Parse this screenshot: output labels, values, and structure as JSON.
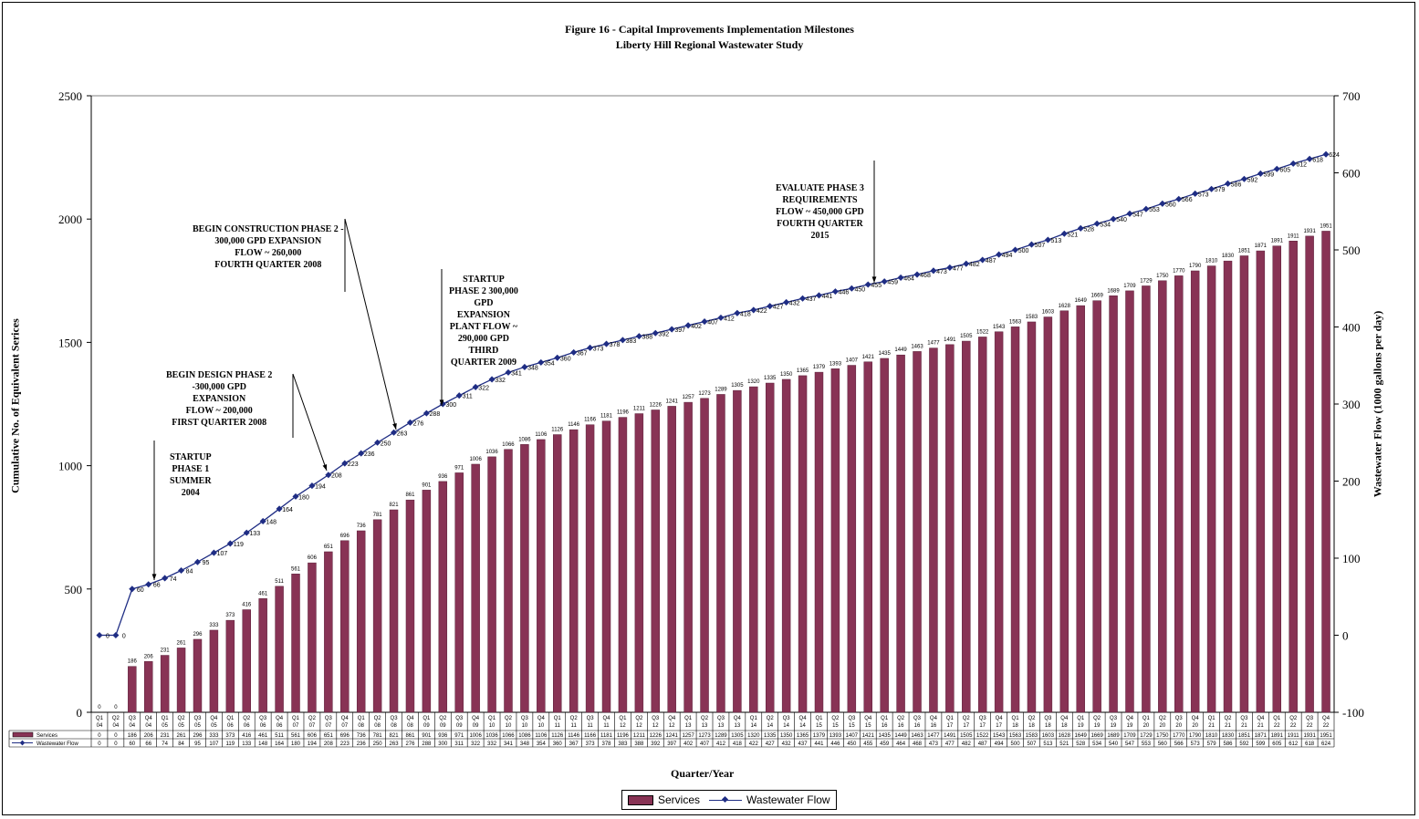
{
  "title": "Figure 16 - Capital Improvements Implementation Milestones",
  "subtitle": "Liberty Hill Regional Wastewater Study",
  "chart_data": {
    "type": "bar",
    "xlabel": "Quarter/Year",
    "ylabel_left": "Cumulative No. of Equivalent Serices",
    "ylabel_right": "Wastewater Flow (1000 gallons per day)",
    "ylim_left": [
      0,
      2500
    ],
    "ylim_right": [
      -100,
      700
    ],
    "yticks_left": [
      "0",
      "500",
      "1000",
      "1500",
      "2000",
      "2500"
    ],
    "yticks_right": [
      "-100",
      "0",
      "100",
      "200",
      "300",
      "400",
      "500",
      "600",
      "700"
    ],
    "categories": [
      [
        "Q1",
        "04"
      ],
      [
        "Q2",
        "04"
      ],
      [
        "Q3",
        "04"
      ],
      [
        "Q4",
        "04"
      ],
      [
        "Q1",
        "05"
      ],
      [
        "Q2",
        "05"
      ],
      [
        "Q3",
        "05"
      ],
      [
        "Q4",
        "05"
      ],
      [
        "Q1",
        "06"
      ],
      [
        "Q2",
        "06"
      ],
      [
        "Q3",
        "06"
      ],
      [
        "Q4",
        "06"
      ],
      [
        "Q1",
        "07"
      ],
      [
        "Q2",
        "07"
      ],
      [
        "Q3",
        "07"
      ],
      [
        "Q4",
        "07"
      ],
      [
        "Q1",
        "08"
      ],
      [
        "Q2",
        "08"
      ],
      [
        "Q3",
        "08"
      ],
      [
        "Q4",
        "08"
      ],
      [
        "Q1",
        "09"
      ],
      [
        "Q2",
        "09"
      ],
      [
        "Q3",
        "09"
      ],
      [
        "Q4",
        "09"
      ],
      [
        "Q1",
        "10"
      ],
      [
        "Q2",
        "10"
      ],
      [
        "Q3",
        "10"
      ],
      [
        "Q4",
        "10"
      ],
      [
        "Q1",
        "11"
      ],
      [
        "Q2",
        "11"
      ],
      [
        "Q3",
        "11"
      ],
      [
        "Q4",
        "11"
      ],
      [
        "Q1",
        "12"
      ],
      [
        "Q2",
        "12"
      ],
      [
        "Q3",
        "12"
      ],
      [
        "Q4",
        "12"
      ],
      [
        "Q1",
        "13"
      ],
      [
        "Q2",
        "13"
      ],
      [
        "Q3",
        "13"
      ],
      [
        "Q4",
        "13"
      ],
      [
        "Q1",
        "14"
      ],
      [
        "Q2",
        "14"
      ],
      [
        "Q3",
        "14"
      ],
      [
        "Q4",
        "14"
      ],
      [
        "Q1",
        "15"
      ],
      [
        "Q2",
        "15"
      ],
      [
        "Q3",
        "15"
      ],
      [
        "Q4",
        "15"
      ],
      [
        "Q1",
        "16"
      ],
      [
        "Q2",
        "16"
      ],
      [
        "Q3",
        "16"
      ],
      [
        "Q4",
        "16"
      ],
      [
        "Q1",
        "17"
      ],
      [
        "Q2",
        "17"
      ],
      [
        "Q3",
        "17"
      ],
      [
        "Q4",
        "17"
      ],
      [
        "Q1",
        "18"
      ],
      [
        "Q2",
        "18"
      ],
      [
        "Q3",
        "18"
      ],
      [
        "Q4",
        "18"
      ],
      [
        "Q1",
        "19"
      ],
      [
        "Q2",
        "19"
      ],
      [
        "Q3",
        "19"
      ],
      [
        "Q4",
        "19"
      ],
      [
        "Q1",
        "20"
      ],
      [
        "Q2",
        "20"
      ],
      [
        "Q3",
        "20"
      ],
      [
        "Q4",
        "20"
      ],
      [
        "Q1",
        "21"
      ],
      [
        "Q2",
        "21"
      ],
      [
        "Q3",
        "21"
      ],
      [
        "Q4",
        "21"
      ],
      [
        "Q1",
        "22"
      ],
      [
        "Q2",
        "22"
      ],
      [
        "Q3",
        "22"
      ],
      [
        "Q4",
        "22"
      ]
    ],
    "series": [
      {
        "name": "Services",
        "axis": "left",
        "color": "#883355",
        "values": [
          0,
          0,
          186,
          206,
          231,
          261,
          296,
          333,
          373,
          416,
          461,
          511,
          561,
          606,
          651,
          696,
          736,
          781,
          821,
          861,
          901,
          936,
          971,
          1006,
          1036,
          1066,
          1086,
          1106,
          1126,
          1146,
          1166,
          1181,
          1196,
          1211,
          1226,
          1241,
          1257,
          1273,
          1289,
          1305,
          1320,
          1335,
          1350,
          1365,
          1379,
          1393,
          1407,
          1421,
          1435,
          1449,
          1463,
          1477,
          1491,
          1505,
          1522,
          1543,
          1563,
          1583,
          1603,
          1628,
          1649,
          1669,
          1689,
          1709,
          1729,
          1750,
          1770,
          1790,
          1810,
          1830,
          1851,
          1871,
          1891,
          1911,
          1931,
          1951
        ]
      },
      {
        "name": "Wastewater Flow",
        "axis": "right",
        "color": "#1f2d84",
        "values": [
          0,
          0,
          60,
          66,
          74,
          84,
          95,
          107,
          119,
          133,
          148,
          164,
          180,
          194,
          208,
          223,
          236,
          250,
          263,
          276,
          288,
          300,
          311,
          322,
          332,
          341,
          348,
          354,
          360,
          367,
          373,
          378,
          383,
          388,
          392,
          397,
          402,
          407,
          412,
          418,
          422,
          427,
          432,
          437,
          441,
          446,
          450,
          455,
          459,
          464,
          468,
          473,
          477,
          482,
          487,
          494,
          500,
          507,
          513,
          521,
          528,
          534,
          540,
          547,
          553,
          560,
          566,
          573,
          579,
          586,
          592,
          599,
          605,
          612,
          618,
          624
        ]
      }
    ],
    "table_rows": [
      "Services",
      "Wastewater Flow"
    ],
    "legend": "bottom-center",
    "annotations": [
      {
        "id": "startup1",
        "text": "STARTUP\nPHASE 1\nSUMMER\n2004"
      },
      {
        "id": "design2",
        "text": "BEGIN DESIGN PHASE 2\n-300,000 GPD\nEXPANSION\nFLOW ~ 200,000\nFIRST QUARTER 2008"
      },
      {
        "id": "constr2",
        "text": "BEGIN CONSTRUCTION PHASE 2 -\n300,000 GPD EXPANSION\nFLOW ~ 260,000\nFOURTH QUARTER 2008"
      },
      {
        "id": "startup2",
        "text": "STARTUP\nPHASE 2 300,000\nGPD\nEXPANSION\nPLANT FLOW ~\n290,000 GPD\nTHIRD\nQUARTER 2009"
      },
      {
        "id": "eval3",
        "text": "EVALUATE PHASE 3\nREQUIREMENTS\nFLOW ~ 450,000 GPD\nFOURTH QUARTER\n2015"
      }
    ]
  }
}
